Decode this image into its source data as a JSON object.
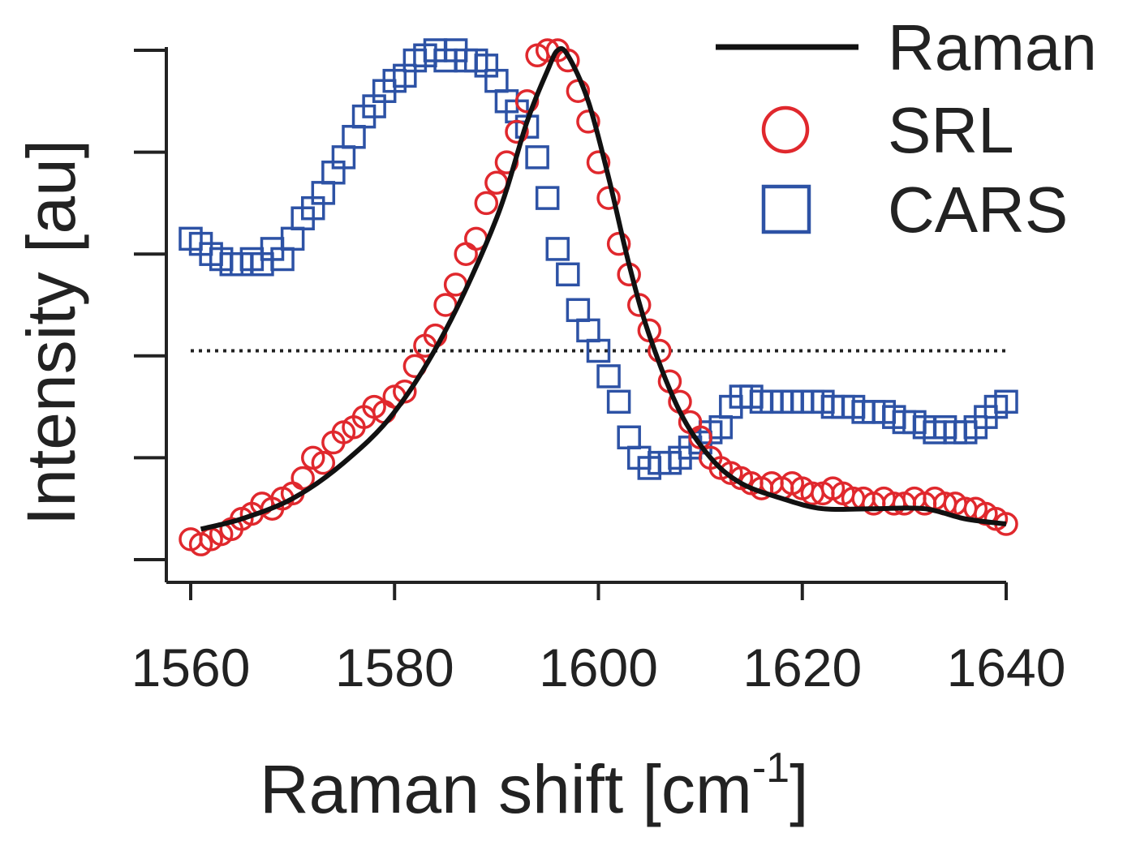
{
  "chart_data": {
    "type": "scatter",
    "xlabel": "Raman shift [cm",
    "xlabel_sup": "-1",
    "xlabel_close": "]",
    "ylabel": "Intensity [au]",
    "xlim": [
      1554,
      1641
    ],
    "ylim": [
      0,
      1
    ],
    "xticks": [
      1560,
      1580,
      1600,
      1620,
      1640
    ],
    "yticks": [
      0,
      0.2,
      0.4,
      0.6,
      0.8,
      1.0
    ],
    "y_tick_labels": "none",
    "grid": false,
    "legend": "top-right",
    "reference_line": {
      "style": "dotted",
      "y": 0.41,
      "x_range": [
        1560,
        1640
      ]
    },
    "series": [
      {
        "name": "Raman",
        "marker": "line",
        "color": "#111111",
        "x": [
          1561,
          1565,
          1570,
          1575,
          1580,
          1585,
          1590,
          1593,
          1595,
          1596,
          1597,
          1599,
          1601,
          1603,
          1605,
          1608,
          1611,
          1614,
          1618,
          1622,
          1627,
          1632,
          1636,
          1640
        ],
        "y": [
          0.06,
          0.08,
          0.12,
          0.19,
          0.29,
          0.45,
          0.67,
          0.86,
          0.96,
          1.0,
          0.99,
          0.9,
          0.75,
          0.58,
          0.44,
          0.29,
          0.2,
          0.15,
          0.12,
          0.1,
          0.1,
          0.1,
          0.08,
          0.07
        ]
      },
      {
        "name": "SRL",
        "marker": "circle",
        "color": "#e0282d",
        "x": [
          1560,
          1561,
          1562,
          1563,
          1564,
          1565,
          1566,
          1567,
          1568,
          1569,
          1570,
          1571,
          1572,
          1573,
          1574,
          1575,
          1576,
          1577,
          1578,
          1579,
          1580,
          1581,
          1582,
          1583,
          1584,
          1585,
          1586,
          1587,
          1588,
          1589,
          1590,
          1591,
          1592,
          1593,
          1594,
          1595,
          1596,
          1597,
          1598,
          1599,
          1600,
          1601,
          1602,
          1603,
          1604,
          1605,
          1606,
          1607,
          1608,
          1609,
          1610,
          1611,
          1612,
          1613,
          1614,
          1615,
          1616,
          1617,
          1618,
          1619,
          1620,
          1621,
          1622,
          1623,
          1624,
          1625,
          1626,
          1627,
          1628,
          1629,
          1630,
          1631,
          1632,
          1633,
          1634,
          1635,
          1636,
          1637,
          1638,
          1639,
          1640
        ],
        "y": [
          0.04,
          0.03,
          0.04,
          0.05,
          0.06,
          0.08,
          0.09,
          0.11,
          0.1,
          0.12,
          0.13,
          0.16,
          0.2,
          0.19,
          0.23,
          0.25,
          0.26,
          0.28,
          0.3,
          0.29,
          0.32,
          0.33,
          0.38,
          0.42,
          0.44,
          0.5,
          0.54,
          0.6,
          0.63,
          0.7,
          0.74,
          0.78,
          0.84,
          0.9,
          0.99,
          1.0,
          1.0,
          0.98,
          0.92,
          0.86,
          0.78,
          0.71,
          0.62,
          0.56,
          0.5,
          0.45,
          0.41,
          0.35,
          0.31,
          0.27,
          0.24,
          0.2,
          0.18,
          0.17,
          0.16,
          0.15,
          0.14,
          0.15,
          0.14,
          0.15,
          0.14,
          0.13,
          0.13,
          0.14,
          0.13,
          0.12,
          0.12,
          0.11,
          0.12,
          0.11,
          0.11,
          0.12,
          0.11,
          0.12,
          0.11,
          0.11,
          0.1,
          0.1,
          0.09,
          0.08,
          0.07
        ]
      },
      {
        "name": "CARS",
        "marker": "square",
        "color": "#2d52a5",
        "x": [
          1560,
          1561,
          1562,
          1563,
          1564,
          1565,
          1566,
          1567,
          1568,
          1569,
          1570,
          1571,
          1572,
          1573,
          1574,
          1575,
          1576,
          1577,
          1578,
          1579,
          1580,
          1581,
          1582,
          1583,
          1584,
          1585,
          1586,
          1587,
          1588,
          1589,
          1590,
          1591,
          1592,
          1593,
          1594,
          1595,
          1596,
          1597,
          1598,
          1599,
          1600,
          1601,
          1602,
          1603,
          1604,
          1605,
          1606,
          1607,
          1608,
          1609,
          1610,
          1611,
          1612,
          1613,
          1614,
          1615,
          1616,
          1617,
          1618,
          1619,
          1620,
          1621,
          1622,
          1623,
          1624,
          1625,
          1626,
          1627,
          1628,
          1629,
          1630,
          1631,
          1632,
          1633,
          1634,
          1635,
          1636,
          1637,
          1638,
          1639,
          1640
        ],
        "y": [
          0.63,
          0.62,
          0.6,
          0.59,
          0.58,
          0.58,
          0.59,
          0.58,
          0.61,
          0.59,
          0.63,
          0.67,
          0.69,
          0.72,
          0.76,
          0.79,
          0.83,
          0.87,
          0.89,
          0.92,
          0.94,
          0.95,
          0.98,
          0.99,
          1.0,
          0.98,
          1.0,
          0.98,
          0.98,
          0.97,
          0.94,
          0.9,
          0.88,
          0.85,
          0.79,
          0.71,
          0.61,
          0.56,
          0.49,
          0.45,
          0.41,
          0.36,
          0.31,
          0.24,
          0.2,
          0.18,
          0.19,
          0.19,
          0.2,
          0.22,
          0.23,
          0.25,
          0.26,
          0.3,
          0.32,
          0.32,
          0.31,
          0.31,
          0.31,
          0.31,
          0.31,
          0.31,
          0.31,
          0.3,
          0.3,
          0.3,
          0.29,
          0.29,
          0.29,
          0.28,
          0.27,
          0.27,
          0.26,
          0.25,
          0.26,
          0.25,
          0.25,
          0.26,
          0.28,
          0.3,
          0.31
        ]
      }
    ]
  }
}
